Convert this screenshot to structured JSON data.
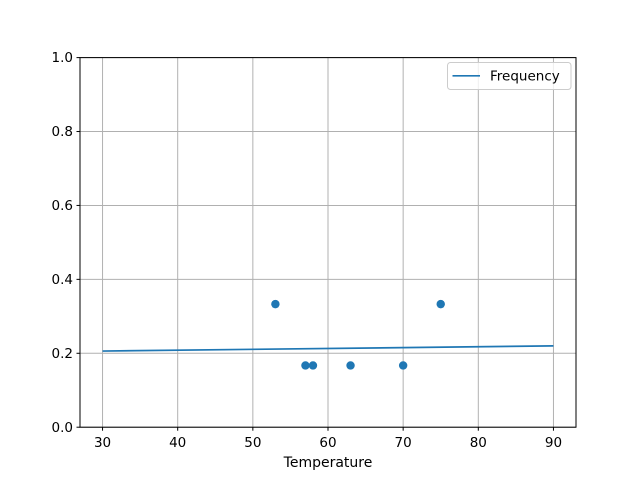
{
  "figure": {
    "background": "#ffffff"
  },
  "colors": {
    "accent": "#1f77b4",
    "grid": "#b0b0b0",
    "spine": "#000000",
    "text": "#000000",
    "legend_border": "#cccccc",
    "legend_face": "#ffffff"
  },
  "chart_data": {
    "type": "line",
    "title": "",
    "xlabel": "Temperature",
    "ylabel": "",
    "xlim": [
      27,
      93
    ],
    "ylim": [
      0.0,
      1.0
    ],
    "grid": true,
    "legend_position": "upper right",
    "xticks": {
      "values": [
        30,
        40,
        50,
        60,
        70,
        80,
        90
      ],
      "labels": [
        "30",
        "40",
        "50",
        "60",
        "70",
        "80",
        "90"
      ]
    },
    "yticks": {
      "values": [
        0.0,
        0.2,
        0.4,
        0.6,
        0.8,
        1.0
      ],
      "labels": [
        "0.0",
        "0.2",
        "0.4",
        "0.6",
        "0.8",
        "1.0"
      ]
    },
    "series": [
      {
        "name": "Frequency",
        "type": "line",
        "color": "#1f77b4",
        "linewidth": 1.7,
        "x": [
          30,
          90
        ],
        "y": [
          0.206,
          0.22
        ]
      },
      {
        "type": "scatter",
        "color": "#1f77b4",
        "marker_radius": 4.2,
        "x": [
          53,
          57,
          58,
          63,
          70,
          75
        ],
        "y": [
          0.333,
          0.167,
          0.167,
          0.167,
          0.167,
          0.333
        ]
      }
    ],
    "legend": {
      "entries": [
        {
          "label": "Frequency",
          "color": "#1f77b4",
          "handle": "line"
        }
      ]
    }
  }
}
